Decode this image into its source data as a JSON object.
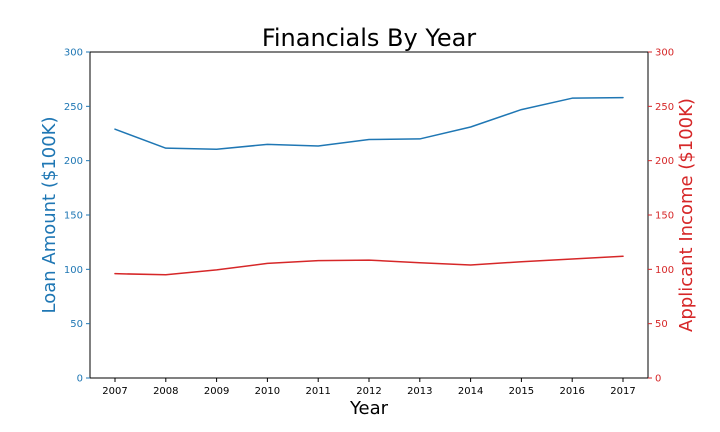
{
  "chart_data": {
    "type": "line",
    "title": "Financials By Year",
    "xlabel": "Year",
    "x": [
      2007,
      2008,
      2009,
      2010,
      2011,
      2012,
      2013,
      2014,
      2015,
      2016,
      2017
    ],
    "series": [
      {
        "name": "Loan Amount ($100K)",
        "axis": "left",
        "color": "#1f77b4",
        "values": [
          229,
          211.5,
          210.5,
          215,
          213.5,
          219.5,
          220,
          231,
          247,
          257.5,
          258
        ]
      },
      {
        "name": "Applicant Income ($100K)",
        "axis": "right",
        "color": "#d62728",
        "values": [
          96,
          95,
          99.5,
          105.5,
          108,
          108.5,
          106,
          104,
          107,
          109.5,
          112
        ]
      }
    ],
    "ylabel_left": "Loan Amount ($100K)",
    "ylabel_right": "Applicant Income ($100K)",
    "ylim_left": [
      0,
      300
    ],
    "ylim_right": [
      0,
      300
    ],
    "yticks_left": [
      0,
      50,
      100,
      150,
      200,
      250,
      300
    ],
    "yticks_right": [
      0,
      50,
      100,
      150,
      200,
      250,
      300
    ],
    "grid": false,
    "legend": "none"
  }
}
